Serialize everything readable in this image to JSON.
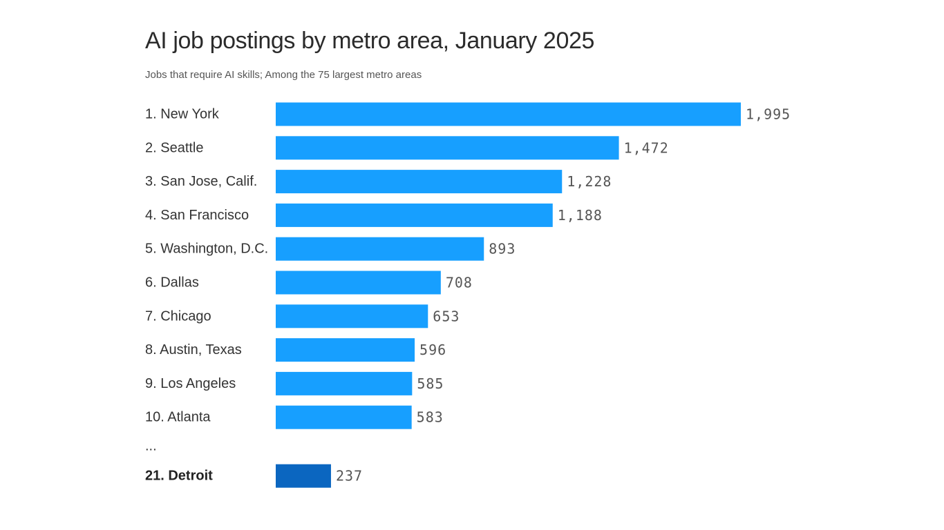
{
  "chart_data": {
    "type": "bar",
    "orientation": "horizontal",
    "title": "AI job postings by metro area, January 2025",
    "subtitle": "Jobs that require AI skills; Among the 75 largest metro areas",
    "categories": [
      "1. New York",
      "2. Seattle",
      "3. San Jose, Calif.",
      "4. San Francisco",
      "5. Washington, D.C.",
      "6. Dallas",
      "7. Chicago",
      "8. Austin, Texas",
      "9. Los Angeles",
      "10. Atlanta"
    ],
    "values": [
      1995,
      1472,
      1228,
      1188,
      893,
      708,
      653,
      596,
      585,
      583
    ],
    "value_labels": [
      "1,995",
      "1,472",
      "1,228",
      "1,188",
      "893",
      "708",
      "653",
      "596",
      "585",
      "583"
    ],
    "separator": "...",
    "highlight": {
      "category": "21. Detroit",
      "value": 237,
      "value_label": "237"
    },
    "colors": {
      "bar": "#179fff",
      "highlight_bar": "#0b66c0"
    },
    "xlim": [
      0,
      1995
    ],
    "grid": false,
    "legend": "none"
  }
}
